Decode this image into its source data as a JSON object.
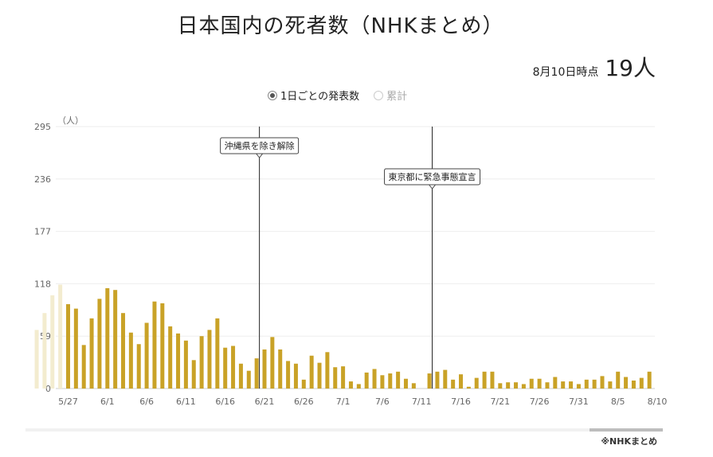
{
  "title": "日本国内の死者数（NHKまとめ）",
  "as_of": {
    "label": "8月10日時点",
    "value": "19人"
  },
  "toggle": {
    "daily_label": "1日ごとの発表数",
    "cumulative_label": "累計",
    "selected": "daily"
  },
  "source": "※NHKまとめ",
  "colors": {
    "bar": "#c9a227",
    "bar_faded": "#f3eccf",
    "grid": "#eeeeee",
    "axis_text": "#666666"
  },
  "chart_data": {
    "type": "bar",
    "ylabel": "（人）",
    "yticks": [
      "295",
      "236",
      "177",
      "118",
      "59",
      "0"
    ],
    "ylim": [
      0,
      295
    ],
    "xticks": [
      "5/27",
      "6/1",
      "6/6",
      "6/11",
      "6/16",
      "6/21",
      "6/26",
      "7/1",
      "7/6",
      "7/11",
      "7/16",
      "7/21",
      "7/26",
      "7/31",
      "8/5",
      "8/10"
    ],
    "faded_values": [
      66,
      85,
      105,
      117
    ],
    "values": [
      95,
      90,
      49,
      79,
      101,
      113,
      111,
      85,
      63,
      50,
      74,
      98,
      96,
      70,
      62,
      54,
      32,
      59,
      66,
      79,
      46,
      48,
      28,
      20,
      34,
      44,
      58,
      44,
      31,
      28,
      10,
      37,
      29,
      41,
      24,
      25,
      8,
      5,
      18,
      22,
      15,
      17,
      19,
      11,
      6,
      0,
      17,
      19,
      21,
      10,
      16,
      2,
      12,
      19,
      19,
      6,
      7,
      7,
      5,
      11,
      11,
      7,
      13,
      8,
      8,
      5,
      10,
      10,
      14,
      8,
      19,
      13,
      9,
      12,
      19
    ],
    "annotations": [
      {
        "date": "6/20",
        "text": "沖縄県を除き解除"
      },
      {
        "date": "7/12",
        "text": "東京都に緊急事態宣言"
      }
    ]
  }
}
